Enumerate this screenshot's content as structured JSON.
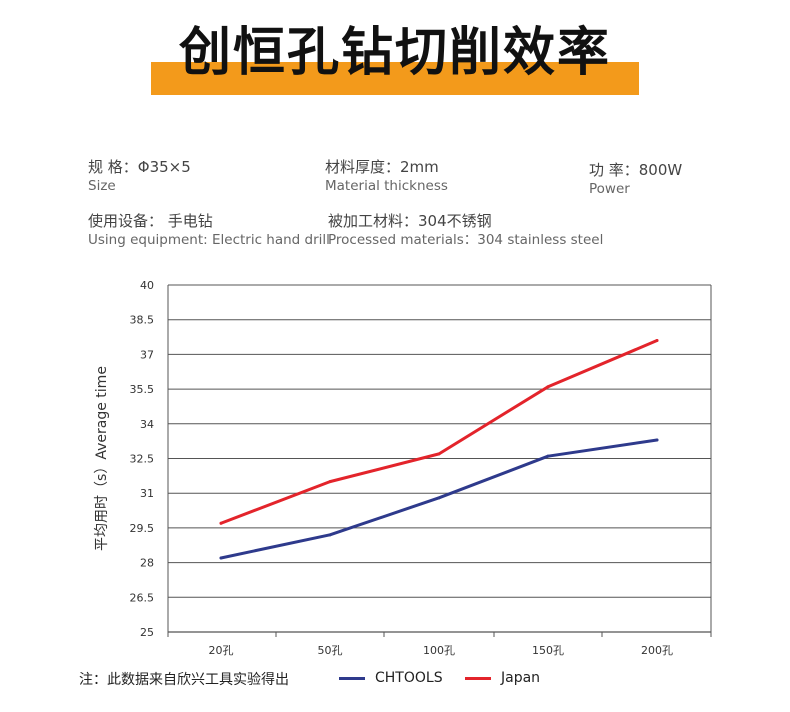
{
  "header": {
    "title": "创恒孔钻切削效率",
    "accent_color": "#f39a1b"
  },
  "specs": [
    {
      "zh": "规    格：Φ35×5",
      "en": "Size"
    },
    {
      "zh": "材料厚度：2mm",
      "en": "Material thickness"
    },
    {
      "zh": "功  率：800W",
      "en": "Power"
    },
    {
      "zh": "使用设备： 手电钻",
      "en": "Using equipment: Electric hand drill"
    },
    {
      "zh": "被加工材料：304不锈钢",
      "en": "Processed materials：304 stainless steel"
    }
  ],
  "chart_data": {
    "type": "line",
    "title": "",
    "xlabel": "",
    "ylabel": "平均用时（s）Average time",
    "categories": [
      "20孔",
      "50孔",
      "100孔",
      "150孔",
      "200孔"
    ],
    "ylim": [
      25,
      40
    ],
    "yticks": [
      25,
      26.5,
      28,
      29.5,
      31,
      32.5,
      34,
      35.5,
      37,
      38.5,
      40
    ],
    "ytick_labels": [
      "25",
      "26.5",
      "28",
      "29.5",
      "31",
      "32.5",
      "34",
      "35.5",
      "37",
      "38.5",
      "40"
    ],
    "grid": true,
    "legend_position": "bottom",
    "series": [
      {
        "name": "CHTOOLS",
        "color": "#2e3a8c",
        "values": [
          28.2,
          29.2,
          30.8,
          32.6,
          33.3
        ]
      },
      {
        "name": "Japan",
        "color": "#e3242b",
        "values": [
          29.7,
          31.5,
          32.7,
          35.6,
          37.6
        ]
      }
    ]
  },
  "footnote": "注：此数据来自欣兴工具实验得出"
}
